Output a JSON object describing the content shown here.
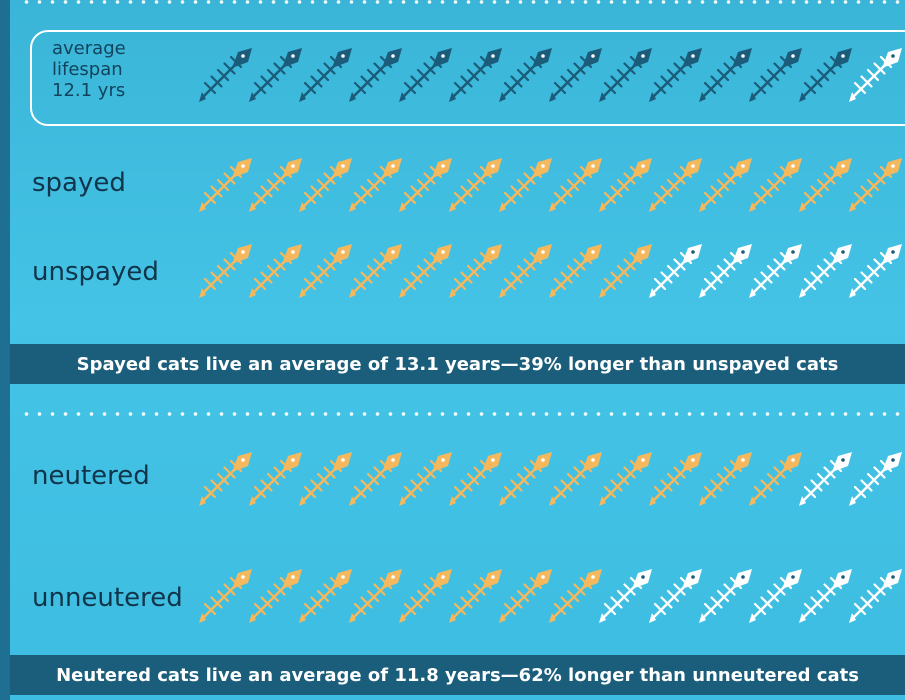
{
  "colors": {
    "background": "#41bfe3",
    "dark_fish": "#1a5c79",
    "orange_fish": "#f6b85c",
    "white_fish": "#ffffff",
    "banner": "#1b5e7b",
    "label_text": "#10354a"
  },
  "average": {
    "line1": "average",
    "line2": "lifespan",
    "line3": "12.1 yrs"
  },
  "rows": {
    "spayed": "spayed",
    "unspayed": "unspayed",
    "neutered": "neutered",
    "unneutered": "unneutered"
  },
  "banners": {
    "spay": "Spayed cats live an average of 13.1 years—39% longer than unspayed cats",
    "neuter": "Neutered cats live an average of 11.8 years—62% longer than unneutered cats"
  },
  "chart_data": {
    "type": "pictograph",
    "icon": "fish-skeleton-icon",
    "icons_per_row": 14,
    "rows": [
      {
        "name": "average",
        "filled": 13,
        "color": "#1a5c79"
      },
      {
        "name": "spayed",
        "filled": 14,
        "color": "#f6b85c"
      },
      {
        "name": "unspayed",
        "filled": 9,
        "color": "#f6b85c"
      },
      {
        "name": "neutered",
        "filled": 12,
        "color": "#f6b85c"
      },
      {
        "name": "unneutered",
        "filled": 8,
        "color": "#f6b85c"
      }
    ]
  }
}
